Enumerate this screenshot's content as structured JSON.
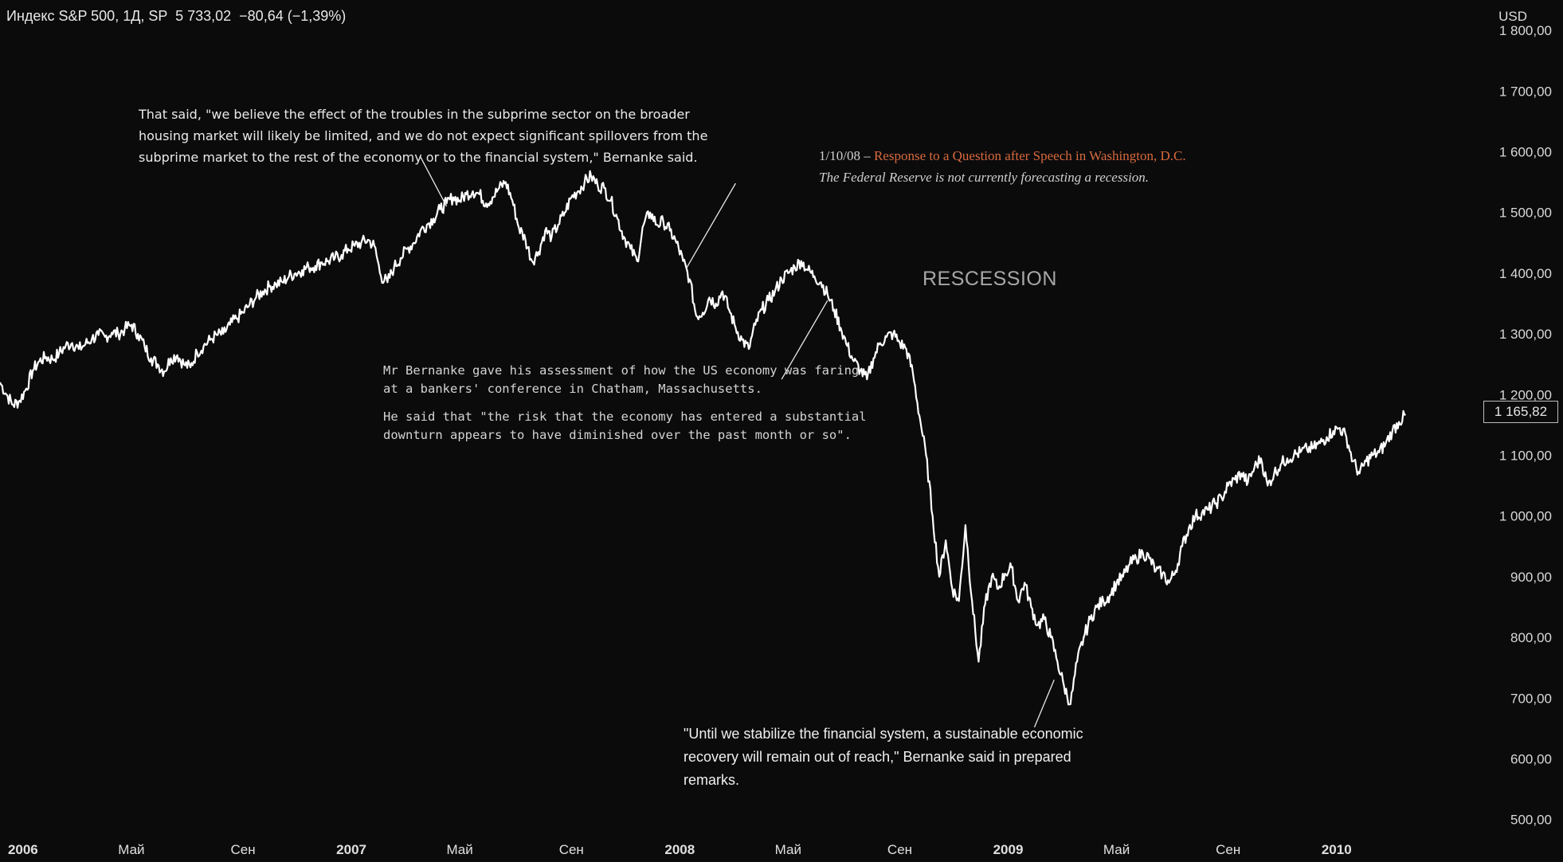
{
  "header": {
    "symbol_line": "Индекс S&P 500, 1Д, SP  5 733,02  −80,64 (−1,39%)"
  },
  "currency": "USD",
  "last_price_label": "1 165,82",
  "colors": {
    "background": "#0b0b0c",
    "line": "#ffffff",
    "accent": "#d86a3c",
    "muted": "#a7a7a7"
  },
  "annotations": {
    "spillover": "That said, \"we believe the effect of the troubles in the subprime sector on the broader housing market will likely be limited, and we do not expect significant spillovers from the subprime market to the rest of the economy or to the financial system,\" Bernanke said.",
    "response_date": "1/10/08 – ",
    "response_title": "Response to a Question after Speech in Washington, D.C.",
    "response_quote": "The Federal Reserve is not currently forecasting a recession.",
    "recession_label": "RESCESSION",
    "chatham_1": "Mr Bernanke gave his assessment of how the US economy was faring at a bankers' conference in Chatham, Massachusetts.",
    "chatham_2": "He said that \"the risk that the economy has entered a substantial downturn appears to have diminished over the past month or so\".",
    "stabilize": "\"Until we stabilize the financial system, a sustainable economic recovery will remain out of reach,\" Bernanke said in prepared remarks."
  },
  "chart_data": {
    "type": "line",
    "title": "Индекс S&P 500, 1Д, SP",
    "xlabel": "",
    "ylabel": "USD",
    "xlim": [
      2005.93,
      2010.43
    ],
    "ylim": [
      430,
      1850
    ],
    "y_ticks": [
      1800,
      1700,
      1600,
      1500,
      1400,
      1300,
      1200,
      1100,
      1000,
      900,
      800,
      700,
      600,
      500
    ],
    "y_tick_labels": [
      "1 800,00",
      "1 700,00",
      "1 600,00",
      "1 500,00",
      "1 400,00",
      "1 300,00",
      "1 200,00",
      "1 100,00",
      "1 000,00",
      "900,00",
      "800,00",
      "700,00",
      "600,00",
      "500,00"
    ],
    "x_ticks": [
      {
        "t": 2006.0,
        "label": "2006",
        "bold": true
      },
      {
        "t": 2006.33,
        "label": "Май",
        "bold": false
      },
      {
        "t": 2006.67,
        "label": "Сен",
        "bold": false
      },
      {
        "t": 2007.0,
        "label": "2007",
        "bold": true
      },
      {
        "t": 2007.33,
        "label": "Май",
        "bold": false
      },
      {
        "t": 2007.67,
        "label": "Сен",
        "bold": false
      },
      {
        "t": 2008.0,
        "label": "2008",
        "bold": true
      },
      {
        "t": 2008.33,
        "label": "Май",
        "bold": false
      },
      {
        "t": 2008.67,
        "label": "Сен",
        "bold": false
      },
      {
        "t": 2009.0,
        "label": "2009",
        "bold": true
      },
      {
        "t": 2009.33,
        "label": "Май",
        "bold": false
      },
      {
        "t": 2009.67,
        "label": "Сен",
        "bold": false
      },
      {
        "t": 2010.0,
        "label": "2010",
        "bold": true
      }
    ],
    "series": [
      {
        "name": "S&P 500",
        "points": [
          [
            2005.93,
            1220
          ],
          [
            2005.95,
            1200
          ],
          [
            2005.97,
            1183
          ],
          [
            2005.99,
            1190
          ],
          [
            2006.01,
            1210
          ],
          [
            2006.03,
            1240
          ],
          [
            2006.05,
            1255
          ],
          [
            2006.07,
            1262
          ],
          [
            2006.09,
            1258
          ],
          [
            2006.11,
            1268
          ],
          [
            2006.13,
            1280
          ],
          [
            2006.15,
            1285
          ],
          [
            2006.17,
            1275
          ],
          [
            2006.19,
            1283
          ],
          [
            2006.21,
            1292
          ],
          [
            2006.23,
            1298
          ],
          [
            2006.25,
            1295
          ],
          [
            2006.27,
            1302
          ],
          [
            2006.29,
            1300
          ],
          [
            2006.31,
            1308
          ],
          [
            2006.33,
            1315
          ],
          [
            2006.35,
            1300
          ],
          [
            2006.37,
            1280
          ],
          [
            2006.39,
            1260
          ],
          [
            2006.41,
            1250
          ],
          [
            2006.43,
            1238
          ],
          [
            2006.45,
            1260
          ],
          [
            2006.47,
            1265
          ],
          [
            2006.49,
            1250
          ],
          [
            2006.51,
            1245
          ],
          [
            2006.53,
            1270
          ],
          [
            2006.55,
            1280
          ],
          [
            2006.57,
            1290
          ],
          [
            2006.59,
            1298
          ],
          [
            2006.61,
            1300
          ],
          [
            2006.63,
            1315
          ],
          [
            2006.65,
            1325
          ],
          [
            2006.67,
            1335
          ],
          [
            2006.69,
            1348
          ],
          [
            2006.71,
            1360
          ],
          [
            2006.73,
            1370
          ],
          [
            2006.75,
            1378
          ],
          [
            2006.77,
            1382
          ],
          [
            2006.79,
            1385
          ],
          [
            2006.81,
            1395
          ],
          [
            2006.83,
            1400
          ],
          [
            2006.85,
            1405
          ],
          [
            2006.87,
            1410
          ],
          [
            2006.89,
            1412
          ],
          [
            2006.91,
            1418
          ],
          [
            2006.93,
            1420
          ],
          [
            2006.95,
            1425
          ],
          [
            2006.97,
            1430
          ],
          [
            2006.99,
            1440
          ],
          [
            2007.01,
            1445
          ],
          [
            2007.03,
            1450
          ],
          [
            2007.05,
            1455
          ],
          [
            2007.07,
            1445
          ],
          [
            2007.09,
            1395
          ],
          [
            2007.11,
            1385
          ],
          [
            2007.13,
            1410
          ],
          [
            2007.15,
            1425
          ],
          [
            2007.17,
            1440
          ],
          [
            2007.19,
            1450
          ],
          [
            2007.21,
            1470
          ],
          [
            2007.23,
            1480
          ],
          [
            2007.25,
            1490
          ],
          [
            2007.27,
            1505
          ],
          [
            2007.29,
            1515
          ],
          [
            2007.31,
            1525
          ],
          [
            2007.33,
            1520
          ],
          [
            2007.35,
            1530
          ],
          [
            2007.37,
            1535
          ],
          [
            2007.39,
            1530
          ],
          [
            2007.41,
            1515
          ],
          [
            2007.43,
            1525
          ],
          [
            2007.45,
            1540
          ],
          [
            2007.47,
            1550
          ],
          [
            2007.49,
            1520
          ],
          [
            2007.51,
            1475
          ],
          [
            2007.53,
            1455
          ],
          [
            2007.55,
            1420
          ],
          [
            2007.57,
            1435
          ],
          [
            2007.59,
            1470
          ],
          [
            2007.61,
            1460
          ],
          [
            2007.63,
            1480
          ],
          [
            2007.65,
            1500
          ],
          [
            2007.67,
            1525
          ],
          [
            2007.69,
            1535
          ],
          [
            2007.71,
            1550
          ],
          [
            2007.73,
            1560
          ],
          [
            2007.75,
            1545
          ],
          [
            2007.77,
            1540
          ],
          [
            2007.79,
            1520
          ],
          [
            2007.81,
            1490
          ],
          [
            2007.83,
            1460
          ],
          [
            2007.85,
            1440
          ],
          [
            2007.87,
            1420
          ],
          [
            2007.89,
            1480
          ],
          [
            2007.91,
            1500
          ],
          [
            2007.93,
            1480
          ],
          [
            2007.95,
            1485
          ],
          [
            2007.97,
            1470
          ],
          [
            2007.99,
            1450
          ],
          [
            2008.01,
            1420
          ],
          [
            2008.03,
            1390
          ],
          [
            2008.05,
            1330
          ],
          [
            2008.07,
            1335
          ],
          [
            2008.09,
            1360
          ],
          [
            2008.11,
            1350
          ],
          [
            2008.13,
            1370
          ],
          [
            2008.15,
            1340
          ],
          [
            2008.17,
            1310
          ],
          [
            2008.19,
            1290
          ],
          [
            2008.21,
            1275
          ],
          [
            2008.23,
            1315
          ],
          [
            2008.25,
            1340
          ],
          [
            2008.27,
            1355
          ],
          [
            2008.29,
            1370
          ],
          [
            2008.31,
            1390
          ],
          [
            2008.33,
            1400
          ],
          [
            2008.35,
            1410
          ],
          [
            2008.37,
            1420
          ],
          [
            2008.39,
            1405
          ],
          [
            2008.41,
            1395
          ],
          [
            2008.43,
            1385
          ],
          [
            2008.45,
            1365
          ],
          [
            2008.47,
            1340
          ],
          [
            2008.49,
            1310
          ],
          [
            2008.51,
            1280
          ],
          [
            2008.53,
            1255
          ],
          [
            2008.55,
            1240
          ],
          [
            2008.57,
            1225
          ],
          [
            2008.59,
            1260
          ],
          [
            2008.61,
            1285
          ],
          [
            2008.63,
            1295
          ],
          [
            2008.65,
            1300
          ],
          [
            2008.67,
            1285
          ],
          [
            2008.69,
            1275
          ],
          [
            2008.71,
            1235
          ],
          [
            2008.73,
            1165
          ],
          [
            2008.75,
            1100
          ],
          [
            2008.77,
            1000
          ],
          [
            2008.79,
            900
          ],
          [
            2008.81,
            960
          ],
          [
            2008.83,
            880
          ],
          [
            2008.85,
            860
          ],
          [
            2008.87,
            985
          ],
          [
            2008.89,
            860
          ],
          [
            2008.91,
            760
          ],
          [
            2008.93,
            855
          ],
          [
            2008.95,
            900
          ],
          [
            2008.97,
            880
          ],
          [
            2008.99,
            905
          ],
          [
            2009.01,
            915
          ],
          [
            2009.03,
            860
          ],
          [
            2009.05,
            890
          ],
          [
            2009.07,
            850
          ],
          [
            2009.09,
            820
          ],
          [
            2009.11,
            830
          ],
          [
            2009.13,
            800
          ],
          [
            2009.15,
            760
          ],
          [
            2009.17,
            720
          ],
          [
            2009.19,
            690
          ],
          [
            2009.21,
            760
          ],
          [
            2009.23,
            800
          ],
          [
            2009.25,
            830
          ],
          [
            2009.27,
            850
          ],
          [
            2009.29,
            860
          ],
          [
            2009.31,
            870
          ],
          [
            2009.33,
            890
          ],
          [
            2009.35,
            900
          ],
          [
            2009.37,
            920
          ],
          [
            2009.39,
            930
          ],
          [
            2009.41,
            940
          ],
          [
            2009.43,
            930
          ],
          [
            2009.45,
            910
          ],
          [
            2009.47,
            905
          ],
          [
            2009.49,
            890
          ],
          [
            2009.51,
            910
          ],
          [
            2009.53,
            950
          ],
          [
            2009.55,
            980
          ],
          [
            2009.57,
            1000
          ],
          [
            2009.59,
            1005
          ],
          [
            2009.61,
            1010
          ],
          [
            2009.63,
            1020
          ],
          [
            2009.65,
            1030
          ],
          [
            2009.67,
            1050
          ],
          [
            2009.69,
            1060
          ],
          [
            2009.71,
            1070
          ],
          [
            2009.73,
            1055
          ],
          [
            2009.75,
            1080
          ],
          [
            2009.77,
            1095
          ],
          [
            2009.79,
            1050
          ],
          [
            2009.81,
            1070
          ],
          [
            2009.83,
            1085
          ],
          [
            2009.85,
            1095
          ],
          [
            2009.87,
            1100
          ],
          [
            2009.89,
            1105
          ],
          [
            2009.91,
            1110
          ],
          [
            2009.93,
            1112
          ],
          [
            2009.95,
            1120
          ],
          [
            2009.97,
            1130
          ],
          [
            2009.99,
            1140
          ],
          [
            2010.01,
            1145
          ],
          [
            2010.03,
            1130
          ],
          [
            2010.05,
            1090
          ],
          [
            2010.07,
            1070
          ],
          [
            2010.09,
            1090
          ],
          [
            2010.11,
            1100
          ],
          [
            2010.13,
            1105
          ],
          [
            2010.15,
            1120
          ],
          [
            2010.17,
            1140
          ],
          [
            2010.19,
            1155
          ],
          [
            2010.21,
            1165.82
          ]
        ]
      }
    ],
    "grid": false,
    "legend": "none",
    "annotation_lines": [
      {
        "name": "spillover-pointer",
        "from": [
          2007.21,
          1592
        ],
        "to": [
          2007.29,
          1510
        ]
      },
      {
        "name": "response-pointer",
        "from": [
          2008.17,
          1548
        ],
        "to": [
          2008.02,
          1408
        ]
      },
      {
        "name": "chatham-pointer",
        "from": [
          2008.31,
          1225
        ],
        "to": [
          2008.45,
          1355
        ]
      },
      {
        "name": "stabilize-pointer",
        "from": [
          2009.08,
          652
        ],
        "to": [
          2009.14,
          730
        ]
      }
    ]
  }
}
